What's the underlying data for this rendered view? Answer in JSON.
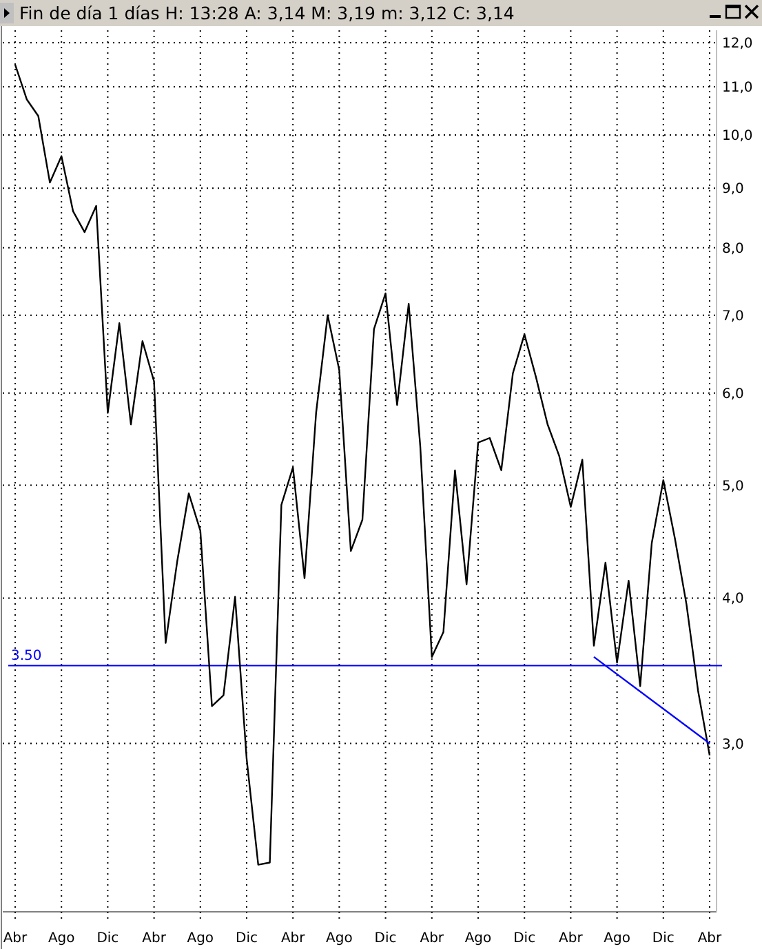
{
  "chart_data": {
    "type": "line",
    "title": "Fin de día 1 días H: 13:28 A: 3,14 M: 3,19 m: 3,12 C: 3,14",
    "log": "y",
    "grid": true,
    "marker": "none",
    "line_style": "solid",
    "categories": [
      "Abr",
      null,
      null,
      null,
      "Ago",
      null,
      null,
      null,
      "Dic",
      null,
      null,
      null,
      "Abr",
      null,
      null,
      null,
      "Ago",
      null,
      null,
      null,
      "Dic",
      null,
      null,
      null,
      "Abr",
      null,
      null,
      null,
      "Ago",
      null,
      null,
      null,
      "Dic",
      null,
      null,
      null,
      "Abr",
      null,
      null,
      null,
      "Ago",
      null,
      null,
      null,
      "Dic",
      null,
      null,
      null,
      "Abr",
      null,
      null,
      null,
      "Ago",
      null,
      null,
      null,
      "Dic",
      null,
      null,
      null,
      "Abr"
    ],
    "ylim": [
      2.15,
      12.3
    ],
    "yticks": [
      {
        "value": 3,
        "label": "3,0"
      },
      {
        "value": 4,
        "label": "4,0"
      },
      {
        "value": 5,
        "label": "5,0"
      },
      {
        "value": 6,
        "label": "6,0"
      },
      {
        "value": 7,
        "label": "7,0"
      },
      {
        "value": 8,
        "label": "8,0"
      },
      {
        "value": 9,
        "label": "9,0"
      },
      {
        "value": 10,
        "label": "10,0"
      },
      {
        "value": 11,
        "label": "11,0"
      },
      {
        "value": 12,
        "label": "12,0"
      }
    ],
    "ref_lines": [
      {
        "axis": "y",
        "value": 3.5,
        "label": "3.50",
        "color": "#0000ff"
      }
    ],
    "series": [
      {
        "color": "#000000",
        "values": [
          11.49,
          10.73,
          10.38,
          9.1,
          9.59,
          8.6,
          8.25,
          8.69,
          5.77,
          6.89,
          5.64,
          6.65,
          6.14,
          3.66,
          4.3,
          4.92,
          4.57,
          3.23,
          3.3,
          4.01,
          2.91,
          2.36,
          2.37,
          4.81,
          5.18,
          4.16,
          5.77,
          7.0,
          6.28,
          4.39,
          4.67,
          6.81,
          7.31,
          5.86,
          7.16,
          5.4,
          3.56,
          3.74,
          5.15,
          4.11,
          5.44,
          5.49,
          5.15,
          6.24,
          6.74,
          6.19,
          5.64,
          5.3,
          4.79,
          5.26,
          3.64,
          4.29,
          3.52,
          4.14,
          3.36,
          4.46,
          5.05,
          4.5,
          3.95,
          3.33,
          2.93
        ]
      },
      {
        "color": "#0000ff",
        "values": [
          null,
          null,
          null,
          null,
          null,
          null,
          null,
          null,
          null,
          null,
          null,
          null,
          null,
          null,
          null,
          null,
          null,
          null,
          null,
          null,
          null,
          null,
          null,
          null,
          null,
          null,
          null,
          null,
          null,
          null,
          null,
          null,
          null,
          null,
          null,
          null,
          null,
          null,
          null,
          null,
          null,
          null,
          null,
          null,
          null,
          null,
          null,
          null,
          null,
          null,
          3.56,
          null,
          null,
          null,
          null,
          null,
          null,
          null,
          null,
          null,
          3.0
        ]
      }
    ]
  }
}
